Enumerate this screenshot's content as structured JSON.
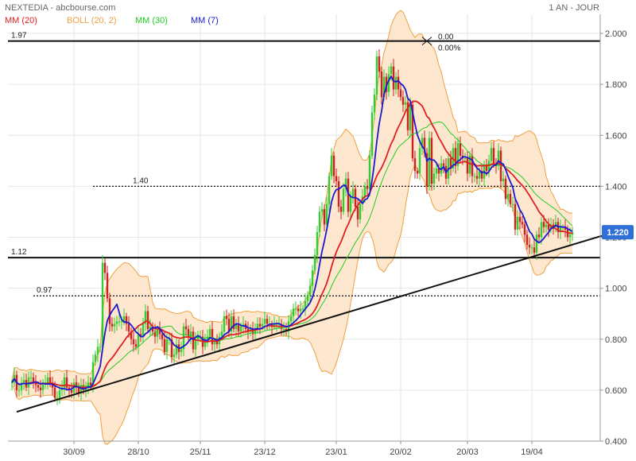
{
  "header": {
    "title": "NEXTEDIA - abcbourse.com",
    "period": "1 AN - JOUR",
    "legend": [
      {
        "label": "MM (20)",
        "color": "#e02020"
      },
      {
        "label": "BOLL (20, 2)",
        "color": "#f0a040"
      },
      {
        "label": "MM (30)",
        "color": "#22cc22"
      },
      {
        "label": "MM (7)",
        "color": "#1a1ad0"
      }
    ]
  },
  "colors": {
    "up": "#33cc33",
    "down": "#cc2222",
    "boll_fill": "#fde3c6",
    "boll_line": "#f0a040",
    "last_badge": "#2f6fd8"
  },
  "chart_data": {
    "type": "candlestick",
    "x_tick_labels": [
      "30/09",
      "28/10",
      "25/11",
      "23/12",
      "23/01",
      "20/02",
      "20/03",
      "19/04"
    ],
    "y_tick_labels": [
      "0.400",
      "0.600",
      "0.800",
      "1.000",
      "1.200",
      "1.400",
      "1.600",
      "1.800",
      "2.000"
    ],
    "ylim": [
      0.4,
      2.05
    ],
    "horizontal_levels": [
      {
        "label": "1.97",
        "value": 1.97,
        "style": "solid"
      },
      {
        "label": "1.40",
        "value": 1.4,
        "style": "dotted"
      },
      {
        "label": "1.12",
        "value": 1.12,
        "style": "solid"
      },
      {
        "label": "0.97",
        "value": 0.97,
        "style": "dotted"
      }
    ],
    "trendline": {
      "from_session": 2,
      "from_value": 0.515,
      "to_session": 244,
      "to_value": 1.19
    },
    "annotation": {
      "value_text": "0.00",
      "percent_text": "0.00%"
    },
    "last_price": "1.220",
    "closes": [
      0.63,
      0.66,
      0.6,
      0.6,
      0.63,
      0.64,
      0.61,
      0.65,
      0.65,
      0.63,
      0.62,
      0.61,
      0.6,
      0.63,
      0.63,
      0.65,
      0.63,
      0.61,
      0.57,
      0.57,
      0.6,
      0.61,
      0.65,
      0.61,
      0.6,
      0.59,
      0.63,
      0.61,
      0.59,
      0.62,
      0.6,
      0.61,
      0.63,
      0.62,
      0.71,
      0.74,
      0.77,
      0.77,
      1.1,
      1.06,
      0.96,
      0.86,
      0.85,
      0.86,
      0.87,
      0.87,
      0.87,
      0.89,
      0.86,
      0.83,
      0.8,
      0.78,
      0.77,
      0.82,
      0.81,
      0.86,
      0.91,
      0.84,
      0.85,
      0.83,
      0.81,
      0.84,
      0.82,
      0.8,
      0.75,
      0.8,
      0.8,
      0.73,
      0.74,
      0.78,
      0.75,
      0.76,
      0.85,
      0.84,
      0.81,
      0.83,
      0.76,
      0.8,
      0.81,
      0.81,
      0.77,
      0.8,
      0.81,
      0.84,
      0.78,
      0.79,
      0.78,
      0.81,
      0.83,
      0.89,
      0.88,
      0.83,
      0.89,
      0.84,
      0.86,
      0.83,
      0.85,
      0.86,
      0.84,
      0.83,
      0.84,
      0.82,
      0.84,
      0.86,
      0.85,
      0.86,
      0.88,
      0.86,
      0.86,
      0.85,
      0.86,
      0.86,
      0.86,
      0.84,
      0.84,
      0.83,
      0.87,
      0.89,
      0.92,
      0.92,
      0.91,
      0.92,
      0.92,
      0.95,
      0.97,
      1.01,
      1.07,
      1.13,
      1.22,
      1.3,
      1.31,
      1.25,
      1.33,
      1.44,
      1.52,
      1.44,
      1.42,
      1.32,
      1.3,
      1.39,
      1.43,
      1.3,
      1.36,
      1.39,
      1.32,
      1.27,
      1.33,
      1.36,
      1.4,
      1.39,
      1.52,
      1.69,
      1.76,
      1.91,
      1.85,
      1.75,
      1.83,
      1.77,
      1.84,
      1.87,
      1.78,
      1.83,
      1.78,
      1.75,
      1.72,
      1.73,
      1.62,
      1.72,
      1.51,
      1.46,
      1.45,
      1.55,
      1.59,
      1.53,
      1.4,
      1.59,
      1.41,
      1.45,
      1.47,
      1.45,
      1.49,
      1.48,
      1.43,
      1.51,
      1.47,
      1.55,
      1.48,
      1.57,
      1.52,
      1.51,
      1.51,
      1.45,
      1.52,
      1.44,
      1.44,
      1.43,
      1.46,
      1.43,
      1.48,
      1.46,
      1.5,
      1.55,
      1.49,
      1.48,
      1.54,
      1.42,
      1.43,
      1.35,
      1.37,
      1.33,
      1.33,
      1.23,
      1.28,
      1.26,
      1.25,
      1.21,
      1.17,
      1.16,
      1.16,
      1.14,
      1.21,
      1.2,
      1.26,
      1.24,
      1.25,
      1.23,
      1.25,
      1.24,
      1.26,
      1.22,
      1.24,
      1.24,
      1.23,
      1.2,
      1.21,
      1.22
    ]
  }
}
